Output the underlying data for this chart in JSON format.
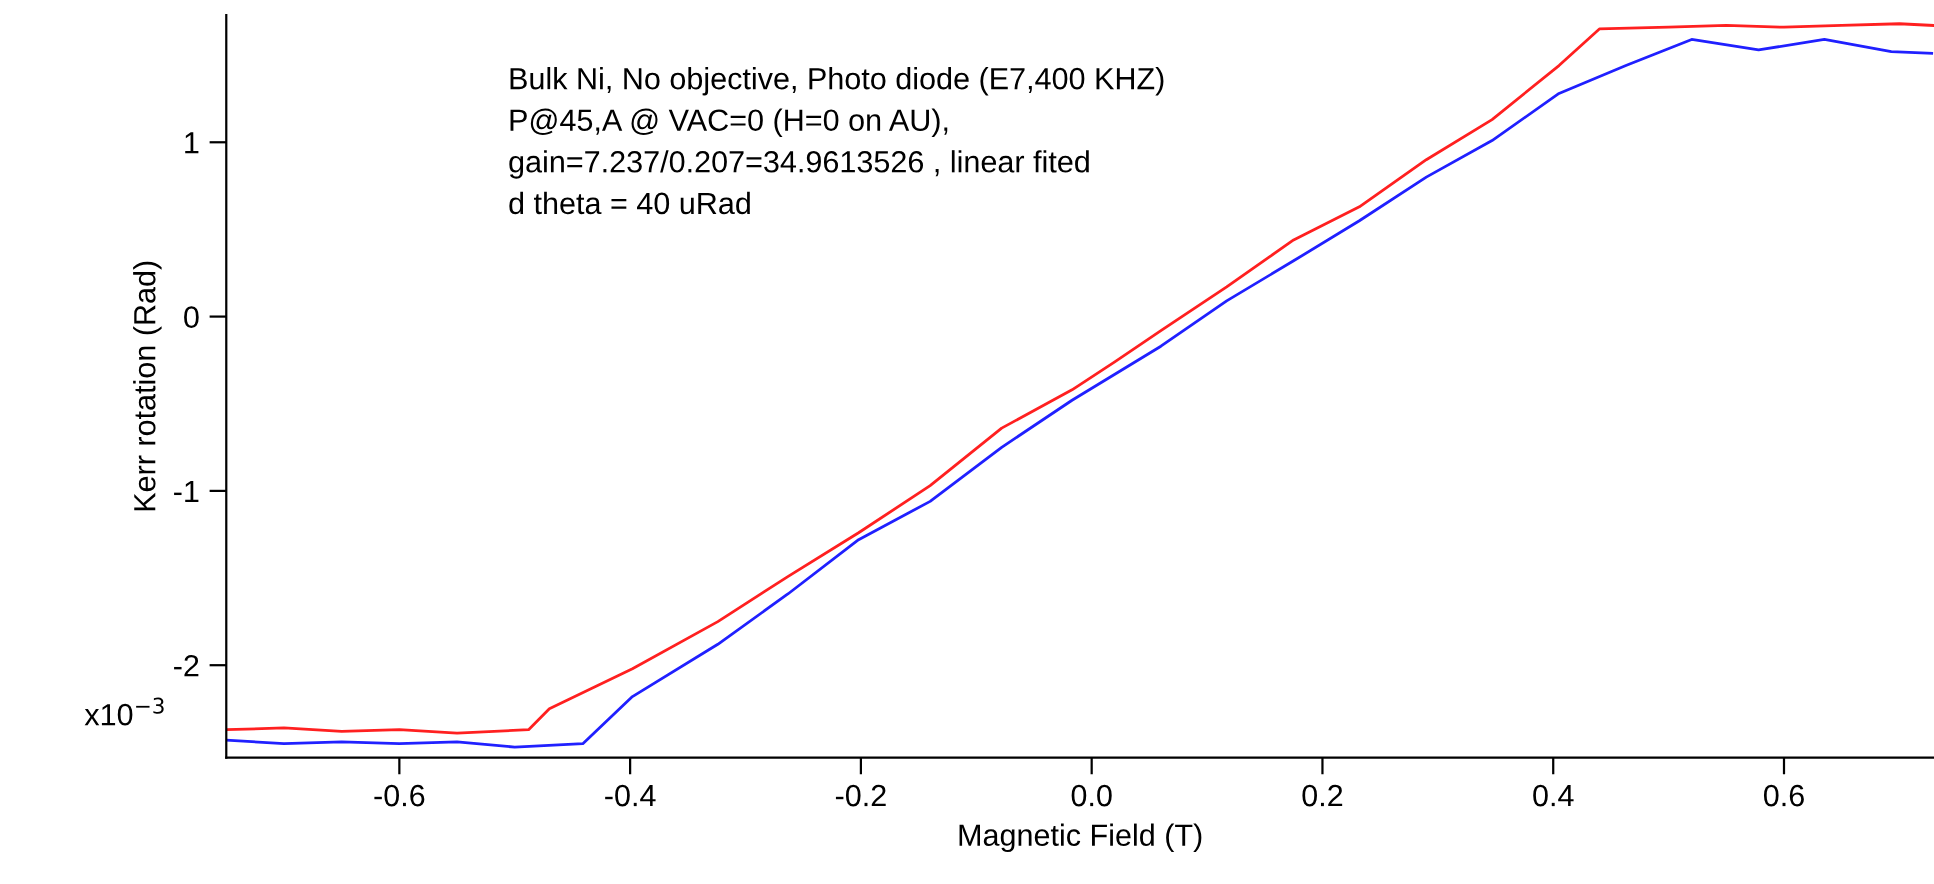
{
  "chart_data": {
    "type": "line",
    "xlabel": "Magnetic Field (T)",
    "ylabel": "Kerr rotation (Rad)",
    "annotations": [
      "x10$^{−3}$",
      "Bulk Ni, No objective, Photo diode (E7,400 KHZ)",
      "P@45,A @ VAC=0 (H=0 on AU),",
      "gain=7.237/0.207=34.9613526 , linear fited",
      "d theta = 40 uRad"
    ],
    "xlim": [
      -0.75,
      0.73
    ],
    "ylim": [
      -2.53,
      1.73
    ],
    "xticks": [
      -0.6,
      -0.4,
      -0.2,
      {
        "value": 0,
        "label": "0.0"
      },
      0.2,
      0.4,
      0.6
    ],
    "yticks": [
      -2,
      -1,
      0,
      1
    ],
    "grid": false,
    "legend": false,
    "marker": "none",
    "line_style": "solid",
    "series": [
      {
        "color": "#ff2020",
        "x": [
          -0.75,
          -0.7,
          -0.65,
          -0.6,
          -0.55,
          -0.488,
          -0.47,
          -0.398,
          -0.324,
          -0.263,
          -0.202,
          -0.14,
          -0.078,
          -0.017,
          0.02,
          0.06,
          0.117,
          0.175,
          0.232,
          0.29,
          0.347,
          0.405,
          0.44,
          0.5,
          0.55,
          0.6,
          0.65,
          0.7,
          0.73
        ],
        "values": [
          -2.37,
          -2.36,
          -2.38,
          -2.37,
          -2.39,
          -2.37,
          -2.25,
          -2.02,
          -1.75,
          -1.49,
          -1.24,
          -0.97,
          -0.64,
          -0.42,
          -0.26,
          -0.08,
          0.17,
          0.44,
          0.63,
          0.9,
          1.13,
          1.44,
          1.65,
          1.66,
          1.67,
          1.66,
          1.67,
          1.68,
          1.67
        ]
      },
      {
        "color": "#2020ff",
        "x": [
          -0.75,
          -0.7,
          -0.65,
          -0.6,
          -0.55,
          -0.5,
          -0.441,
          -0.398,
          -0.324,
          -0.263,
          -0.202,
          -0.14,
          -0.078,
          -0.017,
          0.06,
          0.117,
          0.175,
          0.232,
          0.29,
          0.347,
          0.405,
          0.463,
          0.52,
          0.578,
          0.635,
          0.693,
          0.728
        ],
        "values": [
          -2.43,
          -2.45,
          -2.44,
          -2.45,
          -2.44,
          -2.47,
          -2.45,
          -2.18,
          -1.88,
          -1.59,
          -1.28,
          -1.06,
          -0.75,
          -0.48,
          -0.17,
          0.09,
          0.32,
          0.55,
          0.8,
          1.01,
          1.28,
          1.44,
          1.59,
          1.53,
          1.59,
          1.52,
          1.51
        ]
      }
    ]
  }
}
